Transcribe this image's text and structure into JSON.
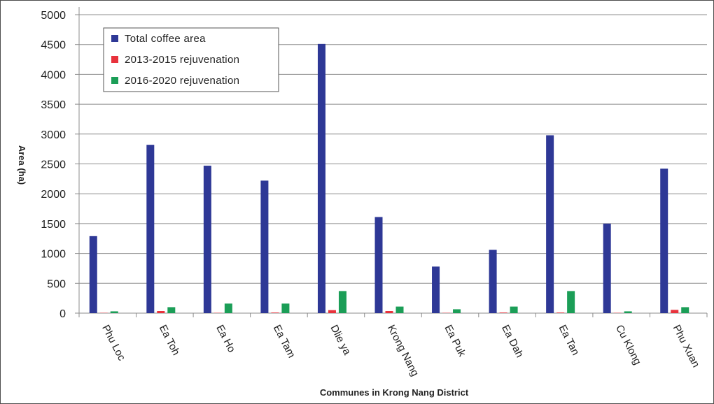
{
  "chart_data": {
    "type": "bar",
    "xlabel": "Communes in Krong Nang District",
    "ylabel": "Area (ha)",
    "ylim": [
      0,
      5000
    ],
    "yticks": [
      0,
      500,
      1000,
      1500,
      2000,
      2500,
      3000,
      3500,
      4000,
      4500,
      5000
    ],
    "grid": true,
    "legend_position": "top-left",
    "categories": [
      "Phu Loc",
      "Ea Toh",
      "Ea Ho",
      "Ea Tam",
      "Dlie ya",
      "Krong Nang",
      "Ea Puk",
      "Ea Dah",
      "Ea Tan",
      "Cu Klong",
      "Phu Xuan"
    ],
    "series": [
      {
        "name": "Total coffee area",
        "color": "#2e3896",
        "values": [
          1290,
          2820,
          2470,
          2220,
          4510,
          1610,
          780,
          1060,
          2980,
          1500,
          2420
        ]
      },
      {
        "name": "2013-2015  rejuvenation",
        "color": "#e8323c",
        "values": [
          5,
          35,
          5,
          10,
          50,
          35,
          5,
          10,
          10,
          5,
          55
        ]
      },
      {
        "name": "2016-2020  rejuvenation",
        "color": "#1b9e57",
        "values": [
          30,
          100,
          160,
          160,
          370,
          110,
          65,
          110,
          370,
          30,
          100
        ]
      }
    ]
  }
}
